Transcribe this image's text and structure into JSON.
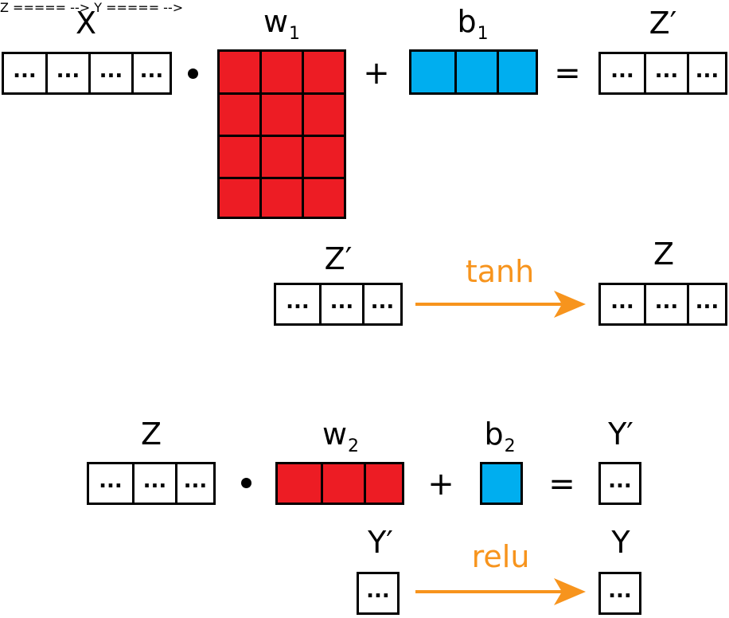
{
  "equation1": {
    "x_label": "X",
    "w1_label": "w",
    "w1_sub": "1",
    "b1_label": "b",
    "b1_sub": "1",
    "zprime_label": "Z′",
    "dot_op": "•",
    "plus_op": "+",
    "equals_op": "=",
    "cell_text": "..."
  },
  "activation1": {
    "input_label": "Z′",
    "function": "tanh",
    "output_label": "Z",
    "cell_text": "..."
  },
  "equation2": {
    "z_label": "Z",
    "w2_label": "w",
    "w2_sub": "2",
    "b2_label": "b",
    "b2_sub": "2",
    "yprime_label": "Y′",
    "plus_op": "+",
    "equals_op": "=",
    "cell_text": "..."
  },
  "activation2": {
    "input_label": "Y′",
    "function": "relu",
    "output_label": "Y",
    "cell_text": "..."
  },
  "colors": {
    "weight": "#ed1c24",
    "bias": "#00aeef",
    "activation": "#f7941d"
  }
}
